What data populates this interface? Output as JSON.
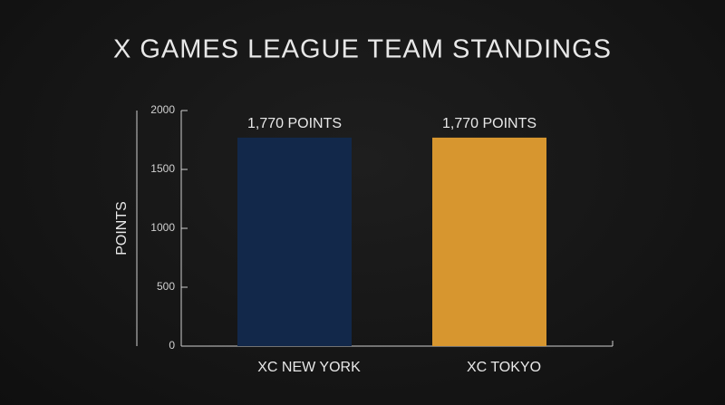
{
  "chart_data": {
    "type": "bar",
    "title": "X GAMES LEAGUE TEAM STANDINGS",
    "ylabel": "POINTS",
    "categories": [
      "XC NEW YORK",
      "XC TOKYO"
    ],
    "values": [
      1770,
      1770
    ],
    "value_labels": [
      "1,770 POINTS",
      "1,770 POINTS"
    ],
    "colors": [
      "#12284a",
      "#d7962f"
    ],
    "ylim": [
      0,
      2000
    ],
    "yticks": [
      0,
      500,
      1000,
      1500,
      2000
    ]
  }
}
